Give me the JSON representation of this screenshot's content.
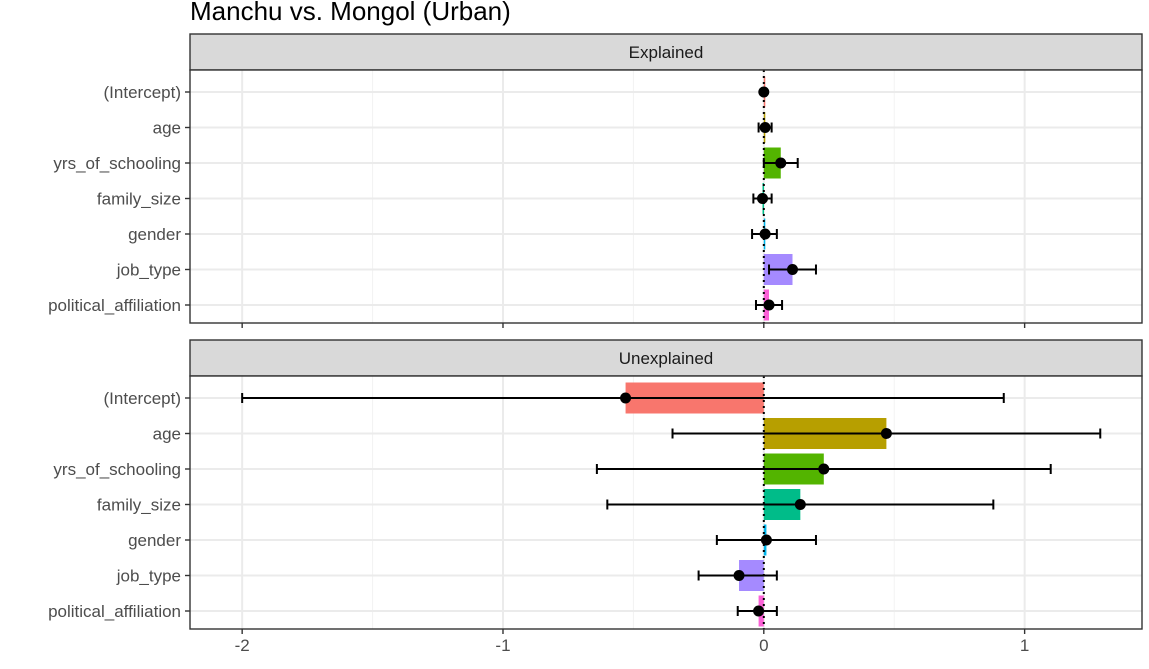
{
  "chart_data": {
    "type": "bar",
    "title": "Manchu vs. Mongol (Urban)",
    "xlim": [
      -2.2,
      1.45
    ],
    "x_ticks": [
      -2,
      -1,
      0,
      1
    ],
    "x_tick_labels": [
      "-2",
      "-1",
      "0",
      "1"
    ],
    "minor_x_gridlines": [
      -1.5,
      -0.5,
      0.5
    ],
    "grid": true,
    "reference_line": 0,
    "categories": [
      "(Intercept)",
      "age",
      "yrs_of_schooling",
      "family_size",
      "gender",
      "job_type",
      "political_affiliation"
    ],
    "category_colors": [
      "#F8766D",
      "#B79F00",
      "#53B400",
      "#00BC89",
      "#00B6EB",
      "#A58AFF",
      "#FB61D7"
    ],
    "panels": [
      {
        "name": "Explained",
        "values": [
          0.0,
          0.005,
          0.065,
          -0.005,
          0.005,
          0.11,
          0.02
        ],
        "ci_low": [
          0.0,
          -0.02,
          0.0,
          -0.04,
          -0.045,
          0.02,
          -0.03
        ],
        "ci_high": [
          0.0,
          0.03,
          0.13,
          0.03,
          0.05,
          0.2,
          0.07
        ]
      },
      {
        "name": "Unexplained",
        "values": [
          -0.53,
          0.47,
          0.23,
          0.14,
          0.01,
          -0.095,
          -0.02
        ],
        "ci_low": [
          -2.0,
          -0.35,
          -0.64,
          -0.6,
          -0.18,
          -0.25,
          -0.1
        ],
        "ci_high": [
          0.92,
          1.29,
          1.1,
          0.88,
          0.2,
          0.05,
          0.05
        ]
      }
    ]
  }
}
